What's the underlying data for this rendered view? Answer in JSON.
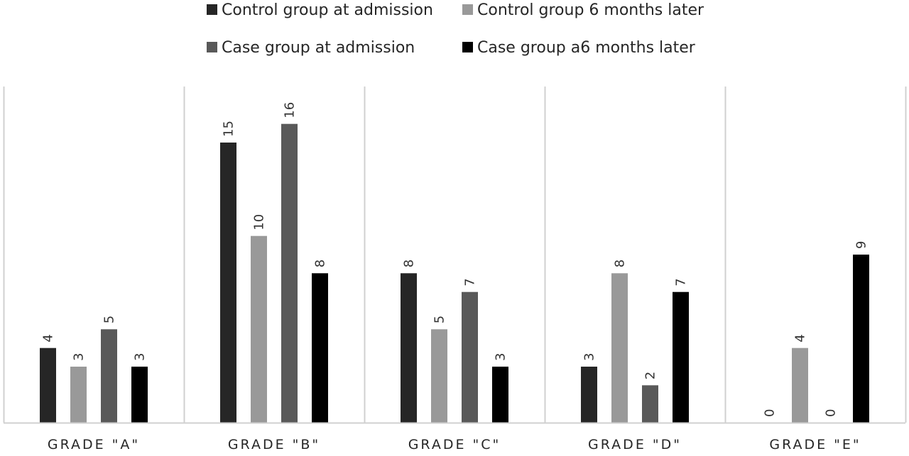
{
  "chart_data": {
    "type": "bar",
    "categories": [
      "GRADE \"A\"",
      "GRADE \"B\"",
      "GRADE \"C\"",
      "GRADE \"D\"",
      "GRADE \"E\""
    ],
    "series": [
      {
        "name": "Control group at admission",
        "values": [
          4,
          15,
          8,
          3,
          0
        ],
        "color": "#262626"
      },
      {
        "name": "Control group 6 months later",
        "values": [
          3,
          10,
          5,
          8,
          4
        ],
        "color": "#999999"
      },
      {
        "name": "Case group at admission",
        "values": [
          5,
          16,
          7,
          2,
          0
        ],
        "color": "#595959"
      },
      {
        "name": "Case group a6 months later",
        "values": [
          3,
          8,
          3,
          7,
          9
        ],
        "color": "#000000"
      }
    ],
    "ylim": [
      0,
      18
    ],
    "legend_position": "top",
    "grid": false,
    "category_separators": true,
    "data_labels": true,
    "data_label_rotation": "vertical",
    "title": "",
    "xlabel": "",
    "ylabel": ""
  }
}
